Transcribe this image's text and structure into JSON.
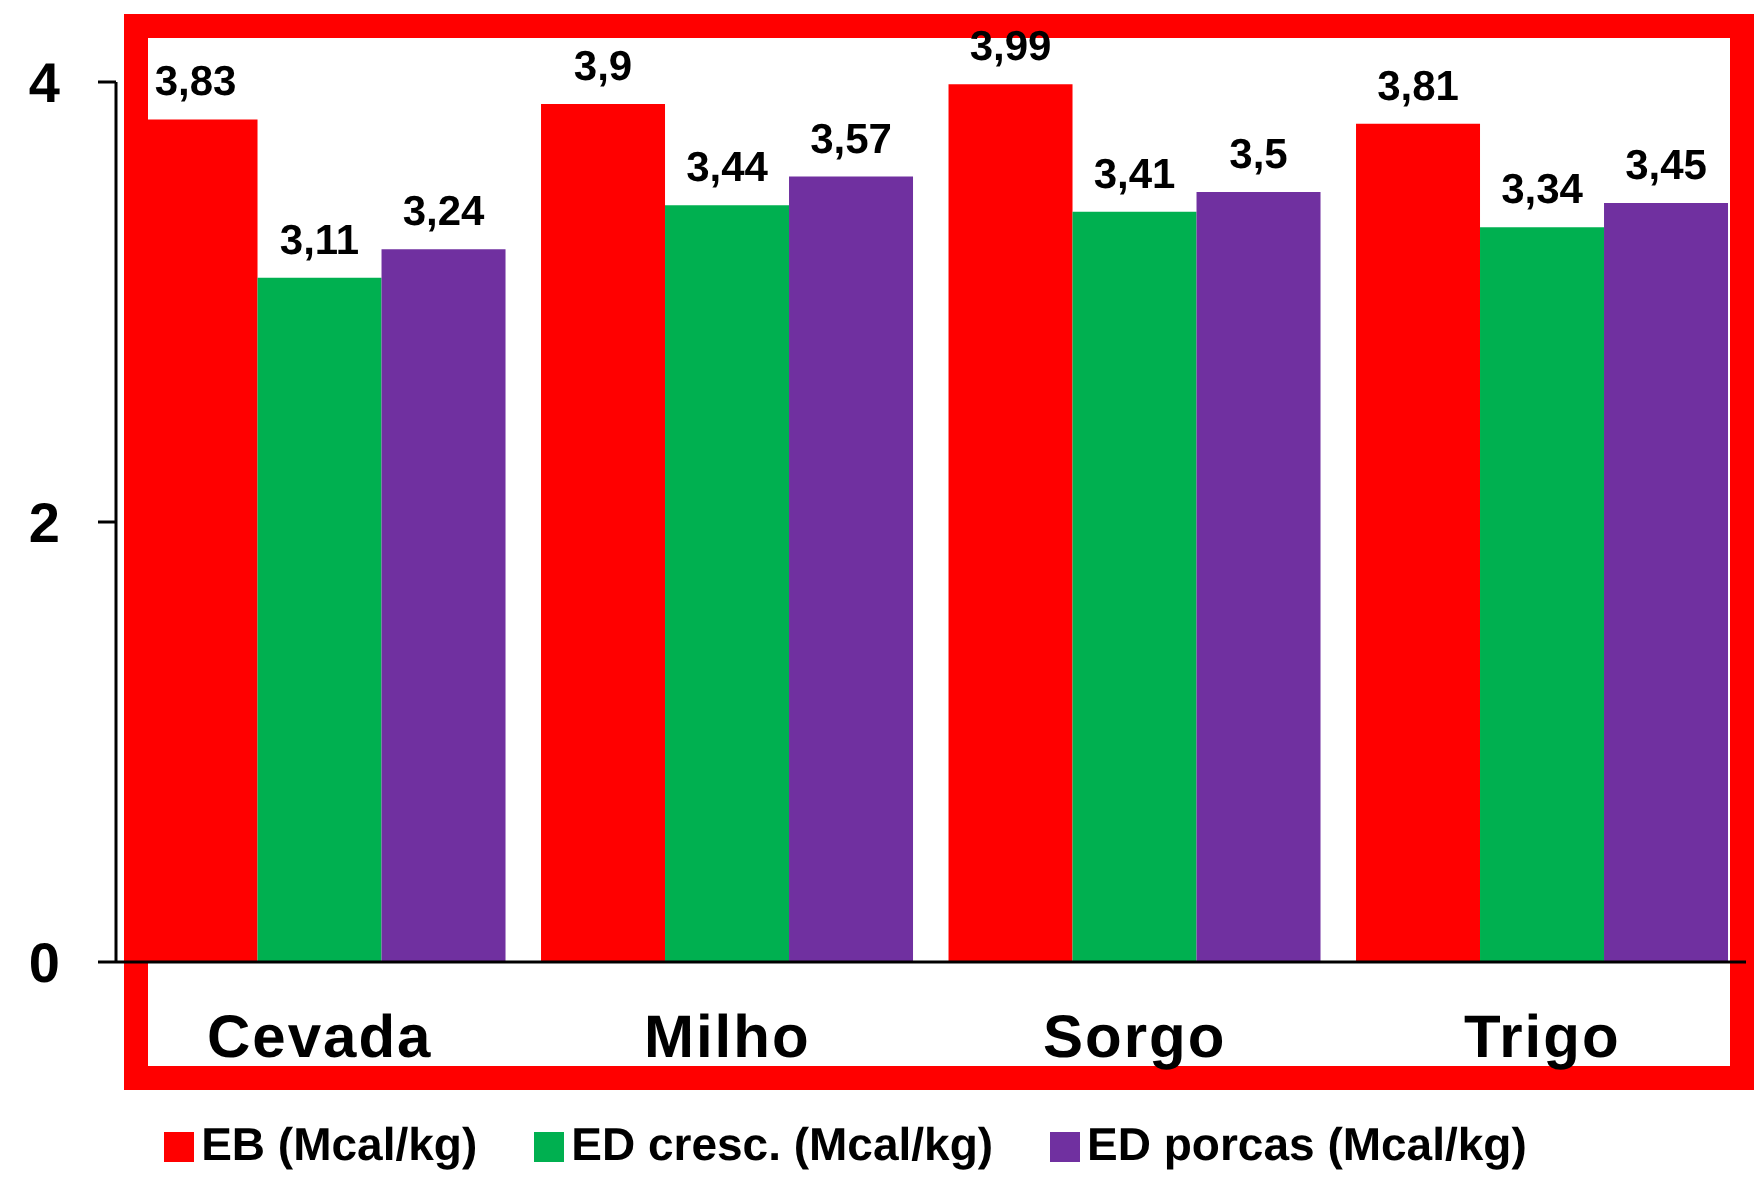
{
  "chart_data": {
    "type": "bar",
    "categories": [
      "Cevada",
      "Milho",
      "Sorgo",
      "Trigo"
    ],
    "series": [
      {
        "name": "EB (Mcal/kg)",
        "color": "#ff0000",
        "values": [
          3.83,
          3.9,
          3.99,
          3.81
        ],
        "value_labels": [
          "3,83",
          "3,9",
          "3,99",
          "3,81"
        ]
      },
      {
        "name": "ED cresc. (Mcal/kg)",
        "color": "#00b050",
        "values": [
          3.11,
          3.44,
          3.41,
          3.34
        ],
        "value_labels": [
          "3,11",
          "3,44",
          "3,41",
          "3,34"
        ]
      },
      {
        "name": "ED porcas (Mcal/kg)",
        "color": "#7030a0",
        "values": [
          3.24,
          3.57,
          3.5,
          3.45
        ],
        "value_labels": [
          "3,24",
          "3,57",
          "3,5",
          "3,45"
        ]
      }
    ],
    "ylim": [
      0,
      4
    ],
    "yticks": [
      0,
      2,
      4
    ],
    "legend": "bottom"
  }
}
